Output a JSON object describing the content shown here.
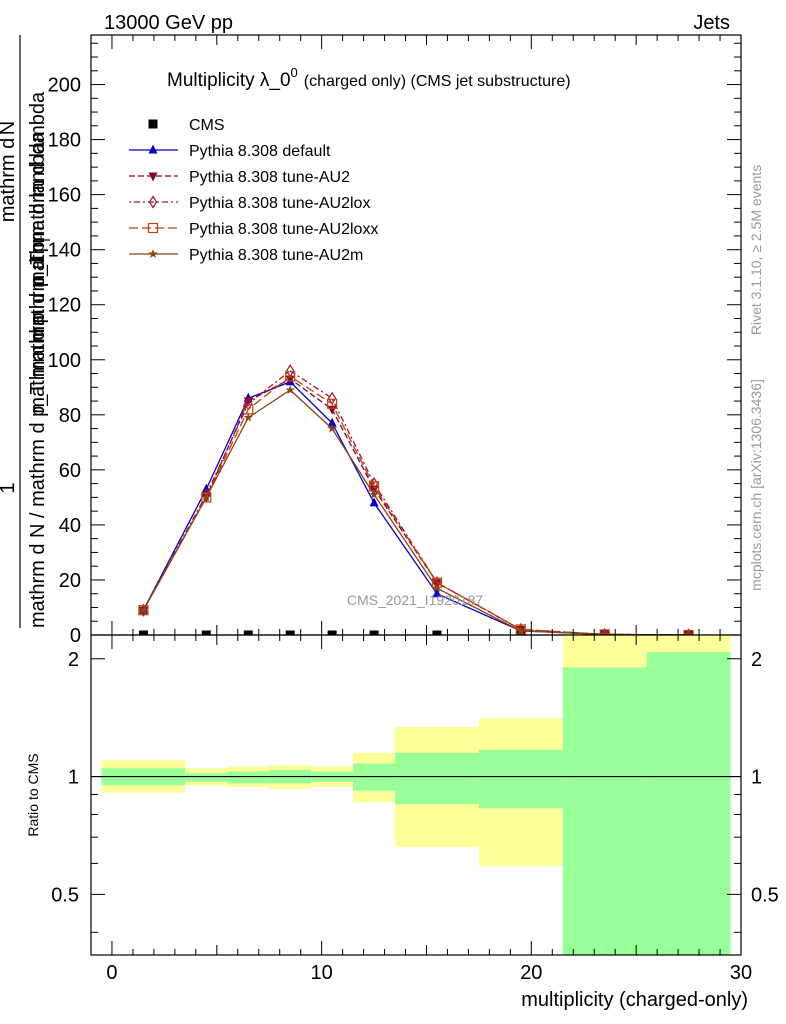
{
  "header": {
    "left": "13000 GeV pp",
    "right": "Jets"
  },
  "side_labels": {
    "rivet": "Rivet 3.1.10, ≥ 2.5M events",
    "mcplots": "mcplots.cern.ch [arXiv:1306.3436]"
  },
  "watermark": "CMS_2021_I1920187",
  "chart_data": [
    {
      "type": "line",
      "title_main": "Multiplicity λ_0",
      "title_sup": "0",
      "title_suffix": "(charged only) (CMS jet substructure)",
      "xlabel": "multiplicity (charged-only)",
      "ylabel_numerator": "1",
      "ylabel_denominator": "mathrm d N / mathrm d p_T mathrm d p_T mathrm d lambda",
      "ylabel_top": "mathrm d^2N",
      "ylabel_top_lines": [
        "mathrm d",
        "N"
      ],
      "ylabel_right_lines": [
        "mathrm d p",
        "T",
        "mathrm d p",
        "mathrm d lambda"
      ],
      "xlim": [
        -1,
        30
      ],
      "ylim": [
        0,
        218
      ],
      "yticks": [
        0,
        20,
        40,
        60,
        80,
        100,
        120,
        140,
        160,
        180,
        200
      ],
      "grid": false,
      "legend_placement": "top-left",
      "legend": [
        "CMS",
        "Pythia 8.308 default",
        "Pythia 8.308 tune-AU2",
        "Pythia 8.308 tune-AU2lox",
        "Pythia 8.308 tune-AU2loxx",
        "Pythia 8.308 tune-AU2m"
      ],
      "series": [
        {
          "name": "CMS",
          "color": "#000000",
          "marker": "square",
          "x": [
            1.5,
            4.5,
            6.5,
            8.5,
            10.5,
            12.5,
            15.5,
            19.5,
            23.5,
            27.5
          ],
          "y": [
            0,
            0,
            0,
            0,
            0,
            0,
            0,
            0,
            0,
            0
          ]
        },
        {
          "name": "Pythia 8.308 default",
          "color": "#0000cc",
          "marker": "triangle-up",
          "dash": "solid",
          "x": [
            1.5,
            4.5,
            6.5,
            8.5,
            10.5,
            12.5,
            15.5,
            19.5,
            23.5,
            27.5
          ],
          "y": [
            9,
            53,
            86,
            92,
            77,
            48,
            15,
            1.5,
            0.2,
            0
          ]
        },
        {
          "name": "Pythia 8.308 tune-AU2",
          "color": "#8b0033",
          "marker": "triangle-down",
          "dash": "dashed",
          "x": [
            1.5,
            4.5,
            6.5,
            8.5,
            10.5,
            12.5,
            15.5,
            19.5,
            23.5,
            27.5
          ],
          "y": [
            9,
            50,
            85,
            93,
            82,
            53,
            19,
            2,
            0.2,
            0
          ]
        },
        {
          "name": "Pythia 8.308 tune-AU2lox",
          "color": "#aa1133",
          "marker": "diamond-open",
          "dash": "dotdash",
          "x": [
            1.5,
            4.5,
            6.5,
            8.5,
            10.5,
            12.5,
            15.5,
            19.5,
            23.5,
            27.5
          ],
          "y": [
            9,
            51,
            84,
            96,
            86,
            55,
            19,
            2,
            0.2,
            0
          ]
        },
        {
          "name": "Pythia 8.308 tune-AU2loxx",
          "color": "#b8460b",
          "marker": "square-open",
          "dash": "longdash",
          "x": [
            1.5,
            4.5,
            6.5,
            8.5,
            10.5,
            12.5,
            15.5,
            19.5,
            23.5,
            27.5
          ],
          "y": [
            9,
            50,
            82,
            94,
            84,
            54,
            19,
            2,
            0.2,
            0
          ]
        },
        {
          "name": "Pythia 8.308 tune-AU2m",
          "color": "#8b4513",
          "marker": "star",
          "dash": "solid",
          "x": [
            1.5,
            4.5,
            6.5,
            8.5,
            10.5,
            12.5,
            15.5,
            19.5,
            23.5,
            27.5
          ],
          "y": [
            9,
            50,
            79,
            89,
            75,
            51,
            17,
            1.5,
            0.2,
            0
          ]
        }
      ]
    },
    {
      "type": "area",
      "ylabel": "Ratio to CMS",
      "xlim": [
        -1,
        30
      ],
      "ylim": [
        0.35,
        2.3
      ],
      "xticks": [
        0,
        10,
        20,
        30
      ],
      "yticks": [
        0.5,
        1,
        2
      ],
      "reference_line": 1,
      "bands": [
        {
          "x0": -0.5,
          "x1": 3.5,
          "inner": [
            0.95,
            1.05
          ],
          "outer": [
            0.91,
            1.1
          ]
        },
        {
          "x0": 3.5,
          "x1": 5.5,
          "inner": [
            0.97,
            1.02
          ],
          "outer": [
            0.95,
            1.05
          ]
        },
        {
          "x0": 5.5,
          "x1": 7.5,
          "inner": [
            0.96,
            1.03
          ],
          "outer": [
            0.94,
            1.06
          ]
        },
        {
          "x0": 7.5,
          "x1": 9.5,
          "inner": [
            0.96,
            1.04
          ],
          "outer": [
            0.93,
            1.07
          ]
        },
        {
          "x0": 9.5,
          "x1": 11.5,
          "inner": [
            0.97,
            1.03
          ],
          "outer": [
            0.94,
            1.06
          ]
        },
        {
          "x0": 11.5,
          "x1": 13.5,
          "inner": [
            0.92,
            1.08
          ],
          "outer": [
            0.86,
            1.15
          ]
        },
        {
          "x0": 13.5,
          "x1": 17.5,
          "inner": [
            0.85,
            1.15
          ],
          "outer": [
            0.66,
            1.34
          ]
        },
        {
          "x0": 17.5,
          "x1": 21.5,
          "inner": [
            0.83,
            1.17
          ],
          "outer": [
            0.59,
            1.41
          ]
        },
        {
          "x0": 21.5,
          "x1": 25.5,
          "inner": [
            0.0,
            1.9
          ],
          "outer": [
            0.0,
            2.5
          ]
        },
        {
          "x0": 25.5,
          "x1": 29.5,
          "inner": [
            0.0,
            2.08
          ],
          "outer": [
            0.0,
            2.5
          ]
        }
      ]
    }
  ],
  "colors": {
    "band_inner": "#99ff99",
    "band_outer": "#ffff99",
    "axes": "#000000",
    "side_text": "#999999"
  }
}
